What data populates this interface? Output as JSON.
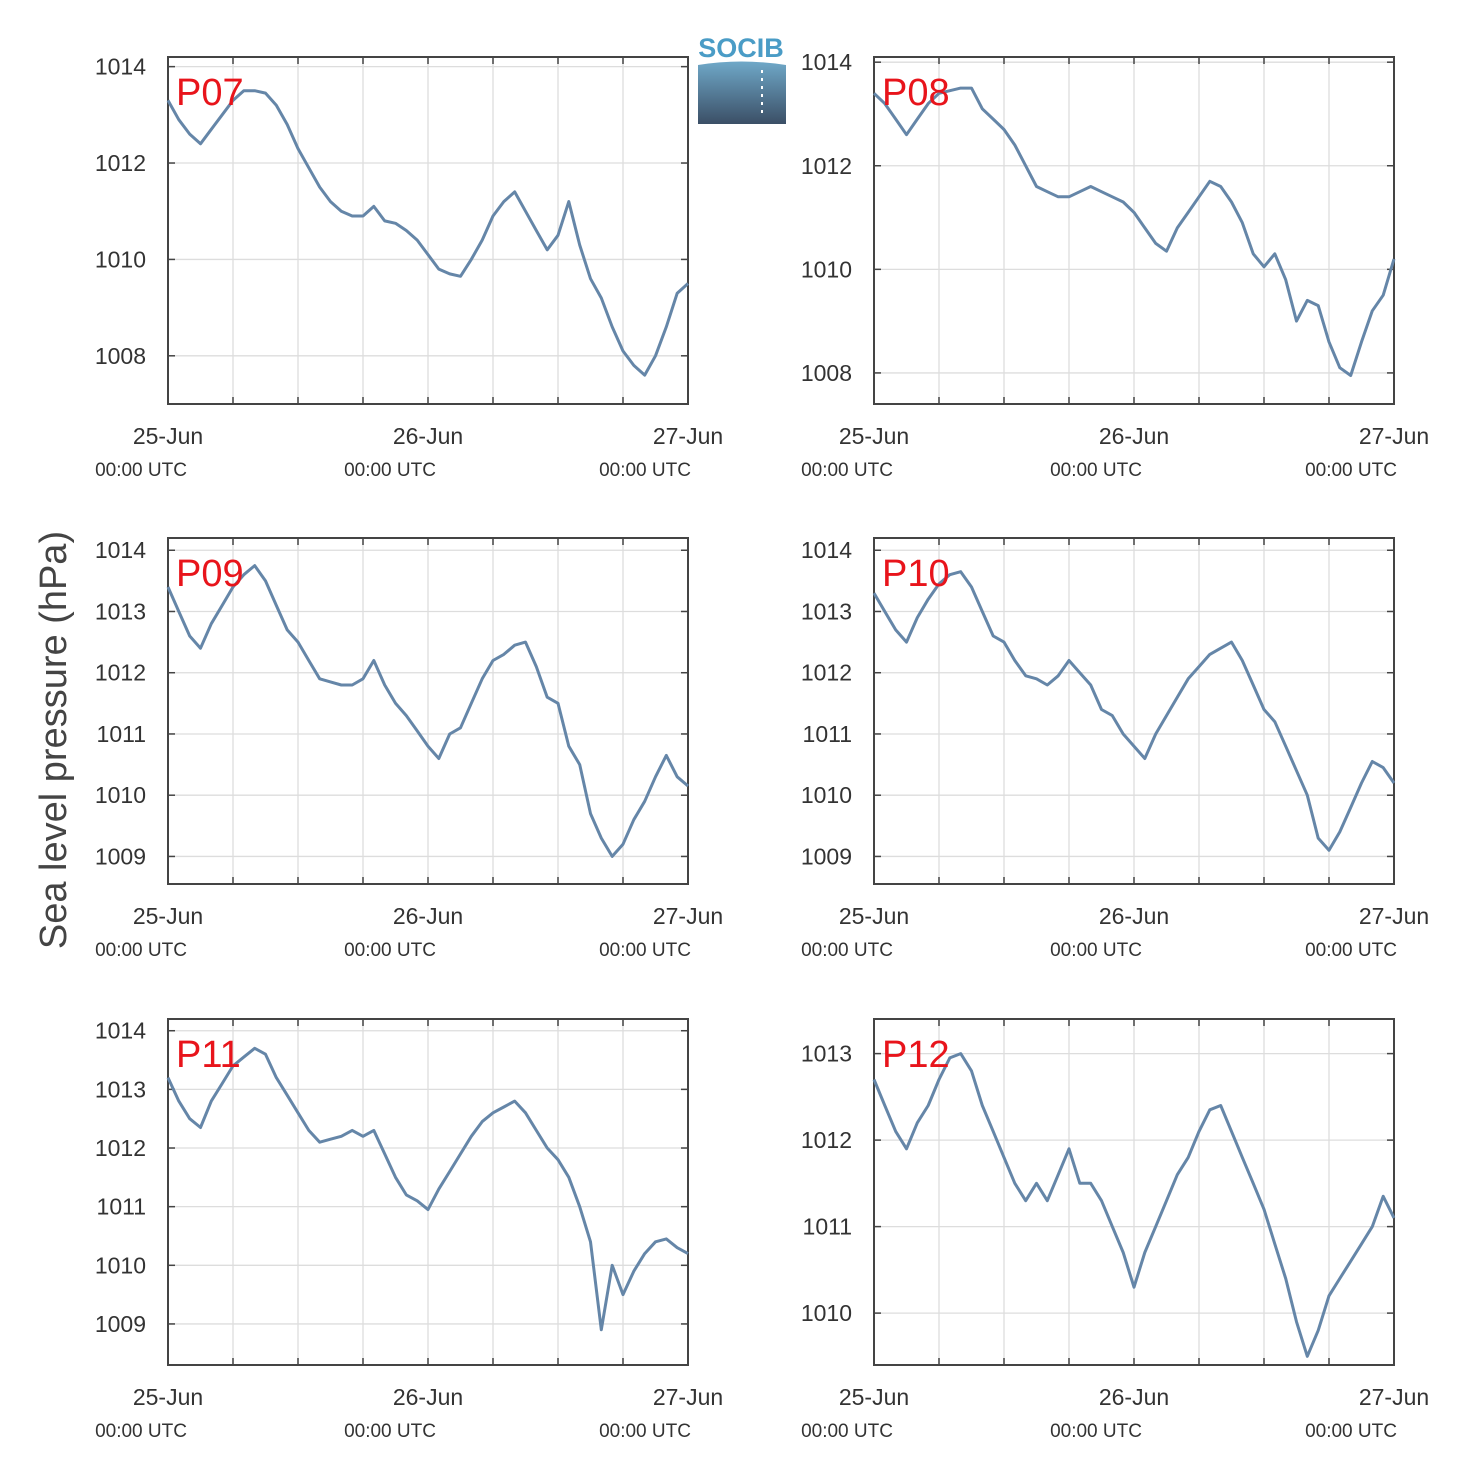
{
  "ylabel": "Sea level pressure (hPa)",
  "logo": {
    "text": "SOCIB",
    "colors": {
      "top": "#6fa8c8",
      "bottom": "#3b4f66"
    }
  },
  "colors": {
    "line": "#6586a8",
    "label": "#e8141b",
    "grid": "#dddddd",
    "frame": "#444444"
  },
  "chart_data": [
    {
      "type": "line",
      "title": "P07",
      "xlim": [
        0,
        48
      ],
      "ylim": [
        1007,
        1014.2
      ],
      "yticks": [
        1008,
        1010,
        1012,
        1014
      ],
      "xticks": [
        {
          "x": 0,
          "label": "25-Jun",
          "sublabel": "00:00 UTC"
        },
        {
          "x": 24,
          "label": "26-Jun",
          "sublabel": "00:00 UTC"
        },
        {
          "x": 48,
          "label": "27-Jun",
          "sublabel": "00:00 UTC"
        }
      ],
      "grid": true,
      "x": [
        0,
        1,
        2,
        3,
        4,
        5,
        6,
        7,
        8,
        9,
        10,
        11,
        12,
        13,
        14,
        15,
        16,
        17,
        18,
        19,
        20,
        21,
        22,
        23,
        24,
        25,
        26,
        27,
        28,
        29,
        30,
        31,
        32,
        33,
        34,
        35,
        36,
        37,
        38,
        39,
        40,
        41,
        42,
        43,
        44,
        45,
        46,
        47,
        48
      ],
      "values": [
        1013.3,
        1012.9,
        1012.6,
        1012.4,
        1012.7,
        1013.0,
        1013.3,
        1013.5,
        1013.5,
        1013.45,
        1013.2,
        1012.8,
        1012.3,
        1011.9,
        1011.5,
        1011.2,
        1011.0,
        1010.9,
        1010.9,
        1011.1,
        1010.8,
        1010.75,
        1010.6,
        1010.4,
        1010.1,
        1009.8,
        1009.7,
        1009.65,
        1010.0,
        1010.4,
        1010.9,
        1011.2,
        1011.4,
        1011.0,
        1010.6,
        1010.2,
        1010.5,
        1011.2,
        1010.3,
        1009.6,
        1009.2,
        1008.6,
        1008.1,
        1007.8,
        1007.6,
        1008.0,
        1008.6,
        1009.3,
        1009.5
      ]
    },
    {
      "type": "line",
      "title": "P08",
      "xlim": [
        0,
        48
      ],
      "ylim": [
        1007.4,
        1014.1
      ],
      "yticks": [
        1008,
        1010,
        1012,
        1014
      ],
      "xticks": [
        {
          "x": 0,
          "label": "25-Jun",
          "sublabel": "00:00 UTC"
        },
        {
          "x": 24,
          "label": "26-Jun",
          "sublabel": "00:00 UTC"
        },
        {
          "x": 48,
          "label": "27-Jun",
          "sublabel": "00:00 UTC"
        }
      ],
      "grid": true,
      "x": [
        0,
        1,
        2,
        3,
        4,
        5,
        6,
        7,
        8,
        9,
        10,
        11,
        12,
        13,
        14,
        15,
        16,
        17,
        18,
        19,
        20,
        21,
        22,
        23,
        24,
        25,
        26,
        27,
        28,
        29,
        30,
        31,
        32,
        33,
        34,
        35,
        36,
        37,
        38,
        39,
        40,
        41,
        42,
        43,
        44,
        45,
        46,
        47,
        48
      ],
      "values": [
        1013.4,
        1013.2,
        1012.9,
        1012.6,
        1012.9,
        1013.2,
        1013.4,
        1013.45,
        1013.5,
        1013.5,
        1013.1,
        1012.9,
        1012.7,
        1012.4,
        1012.0,
        1011.6,
        1011.5,
        1011.4,
        1011.4,
        1011.5,
        1011.6,
        1011.5,
        1011.4,
        1011.3,
        1011.1,
        1010.8,
        1010.5,
        1010.35,
        1010.8,
        1011.1,
        1011.4,
        1011.7,
        1011.6,
        1011.3,
        1010.9,
        1010.3,
        1010.05,
        1010.3,
        1009.8,
        1009.0,
        1009.4,
        1009.3,
        1008.6,
        1008.1,
        1007.95,
        1008.6,
        1009.2,
        1009.5,
        1010.2
      ]
    },
    {
      "type": "line",
      "title": "P09",
      "xlim": [
        0,
        48
      ],
      "ylim": [
        1008.55,
        1014.2
      ],
      "yticks": [
        1009,
        1010,
        1011,
        1012,
        1013,
        1014
      ],
      "xticks": [
        {
          "x": 0,
          "label": "25-Jun",
          "sublabel": "00:00 UTC"
        },
        {
          "x": 24,
          "label": "26-Jun",
          "sublabel": "00:00 UTC"
        },
        {
          "x": 48,
          "label": "27-Jun",
          "sublabel": "00:00 UTC"
        }
      ],
      "grid": true,
      "x": [
        0,
        1,
        2,
        3,
        4,
        5,
        6,
        7,
        8,
        9,
        10,
        11,
        12,
        13,
        14,
        15,
        16,
        17,
        18,
        19,
        20,
        21,
        22,
        23,
        24,
        25,
        26,
        27,
        28,
        29,
        30,
        31,
        32,
        33,
        34,
        35,
        36,
        37,
        38,
        39,
        40,
        41,
        42,
        43,
        44,
        45,
        46,
        47,
        48
      ],
      "values": [
        1013.4,
        1013.0,
        1012.6,
        1012.4,
        1012.8,
        1013.1,
        1013.4,
        1013.6,
        1013.75,
        1013.5,
        1013.1,
        1012.7,
        1012.5,
        1012.2,
        1011.9,
        1011.85,
        1011.8,
        1011.8,
        1011.9,
        1012.2,
        1011.8,
        1011.5,
        1011.3,
        1011.05,
        1010.8,
        1010.6,
        1011.0,
        1011.1,
        1011.5,
        1011.9,
        1012.2,
        1012.3,
        1012.45,
        1012.5,
        1012.1,
        1011.6,
        1011.5,
        1010.8,
        1010.5,
        1009.7,
        1009.3,
        1009.0,
        1009.2,
        1009.6,
        1009.9,
        1010.3,
        1010.65,
        1010.3,
        1010.15
      ]
    },
    {
      "type": "line",
      "title": "P10",
      "xlim": [
        0,
        48
      ],
      "ylim": [
        1008.55,
        1014.2
      ],
      "yticks": [
        1009,
        1010,
        1011,
        1012,
        1013,
        1014
      ],
      "xticks": [
        {
          "x": 0,
          "label": "25-Jun",
          "sublabel": "00:00 UTC"
        },
        {
          "x": 24,
          "label": "26-Jun",
          "sublabel": "00:00 UTC"
        },
        {
          "x": 48,
          "label": "27-Jun",
          "sublabel": "00:00 UTC"
        }
      ],
      "grid": true,
      "x": [
        0,
        1,
        2,
        3,
        4,
        5,
        6,
        7,
        8,
        9,
        10,
        11,
        12,
        13,
        14,
        15,
        16,
        17,
        18,
        19,
        20,
        21,
        22,
        23,
        24,
        25,
        26,
        27,
        28,
        29,
        30,
        31,
        32,
        33,
        34,
        35,
        36,
        37,
        38,
        39,
        40,
        41,
        42,
        43,
        44,
        45,
        46,
        47,
        48
      ],
      "values": [
        1013.3,
        1013.0,
        1012.7,
        1012.5,
        1012.9,
        1013.2,
        1013.45,
        1013.6,
        1013.65,
        1013.4,
        1013.0,
        1012.6,
        1012.5,
        1012.2,
        1011.95,
        1011.9,
        1011.8,
        1011.95,
        1012.2,
        1012.0,
        1011.8,
        1011.4,
        1011.3,
        1011.0,
        1010.8,
        1010.6,
        1011.0,
        1011.3,
        1011.6,
        1011.9,
        1012.1,
        1012.3,
        1012.4,
        1012.5,
        1012.2,
        1011.8,
        1011.4,
        1011.2,
        1010.8,
        1010.4,
        1010.0,
        1009.3,
        1009.1,
        1009.4,
        1009.8,
        1010.2,
        1010.55,
        1010.45,
        1010.2
      ]
    },
    {
      "type": "line",
      "title": "P11",
      "xlim": [
        0,
        48
      ],
      "ylim": [
        1008.3,
        1014.2
      ],
      "yticks": [
        1009,
        1010,
        1011,
        1012,
        1013,
        1014
      ],
      "xticks": [
        {
          "x": 0,
          "label": "25-Jun",
          "sublabel": "00:00 UTC"
        },
        {
          "x": 24,
          "label": "26-Jun",
          "sublabel": "00:00 UTC"
        },
        {
          "x": 48,
          "label": "27-Jun",
          "sublabel": "00:00 UTC"
        }
      ],
      "grid": true,
      "x": [
        0,
        1,
        2,
        3,
        4,
        5,
        6,
        7,
        8,
        9,
        10,
        11,
        12,
        13,
        14,
        15,
        16,
        17,
        18,
        19,
        20,
        21,
        22,
        23,
        24,
        25,
        26,
        27,
        28,
        29,
        30,
        31,
        32,
        33,
        34,
        35,
        36,
        37,
        38,
        39,
        40,
        41,
        42,
        43,
        44,
        45,
        46,
        47,
        48
      ],
      "values": [
        1013.2,
        1012.8,
        1012.5,
        1012.35,
        1012.8,
        1013.1,
        1013.4,
        1013.55,
        1013.7,
        1013.6,
        1013.2,
        1012.9,
        1012.6,
        1012.3,
        1012.1,
        1012.15,
        1012.2,
        1012.3,
        1012.2,
        1012.3,
        1011.9,
        1011.5,
        1011.2,
        1011.1,
        1010.95,
        1011.3,
        1011.6,
        1011.9,
        1012.2,
        1012.45,
        1012.6,
        1012.7,
        1012.8,
        1012.6,
        1012.3,
        1012.0,
        1011.8,
        1011.5,
        1011.0,
        1010.4,
        1008.9,
        1010.0,
        1009.5,
        1009.9,
        1010.2,
        1010.4,
        1010.45,
        1010.3,
        1010.2
      ]
    },
    {
      "type": "line",
      "title": "P12",
      "xlim": [
        0,
        48
      ],
      "ylim": [
        1009.4,
        1013.4
      ],
      "yticks": [
        1010,
        1011,
        1012,
        1013
      ],
      "xticks": [
        {
          "x": 0,
          "label": "25-Jun",
          "sublabel": "00:00 UTC"
        },
        {
          "x": 24,
          "label": "26-Jun",
          "sublabel": "00:00 UTC"
        },
        {
          "x": 48,
          "label": "27-Jun",
          "sublabel": "00:00 UTC"
        }
      ],
      "grid": true,
      "x": [
        0,
        1,
        2,
        3,
        4,
        5,
        6,
        7,
        8,
        9,
        10,
        11,
        12,
        13,
        14,
        15,
        16,
        17,
        18,
        19,
        20,
        21,
        22,
        23,
        24,
        25,
        26,
        27,
        28,
        29,
        30,
        31,
        32,
        33,
        34,
        35,
        36,
        37,
        38,
        39,
        40,
        41,
        42,
        43,
        44,
        45,
        46,
        47,
        48
      ],
      "values": [
        1012.7,
        1012.4,
        1012.1,
        1011.9,
        1012.2,
        1012.4,
        1012.7,
        1012.95,
        1013.0,
        1012.8,
        1012.4,
        1012.1,
        1011.8,
        1011.5,
        1011.3,
        1011.5,
        1011.3,
        1011.6,
        1011.9,
        1011.5,
        1011.5,
        1011.3,
        1011.0,
        1010.7,
        1010.3,
        1010.7,
        1011.0,
        1011.3,
        1011.6,
        1011.8,
        1012.1,
        1012.35,
        1012.4,
        1012.1,
        1011.8,
        1011.5,
        1011.2,
        1010.8,
        1010.4,
        1009.9,
        1009.5,
        1009.8,
        1010.2,
        1010.4,
        1010.6,
        1010.8,
        1011.0,
        1011.35,
        1011.1
      ]
    }
  ]
}
